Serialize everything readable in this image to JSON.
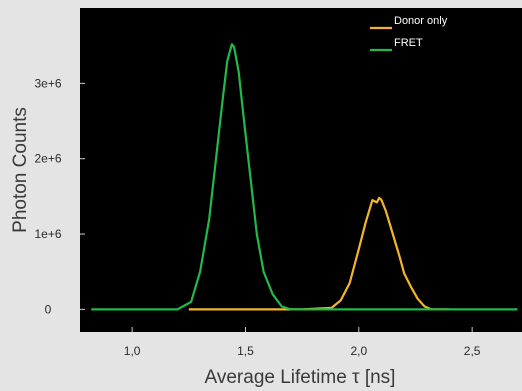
{
  "chart_data": {
    "type": "line",
    "title": "",
    "xlabel": "Average Lifetime τ [ns]",
    "ylabel": "Photon Counts",
    "xlim": [
      0.77,
      2.72
    ],
    "ylim": [
      -300000,
      4000000
    ],
    "x_ticks": [
      {
        "value": 1.0,
        "label": "1,0"
      },
      {
        "value": 1.5,
        "label": "1,5"
      },
      {
        "value": 2.0,
        "label": "2,0"
      },
      {
        "value": 2.5,
        "label": "2,5"
      }
    ],
    "y_ticks": [
      {
        "value": 0,
        "label": "0"
      },
      {
        "value": 1000000,
        "label": "1e+6"
      },
      {
        "value": 2000000,
        "label": "2e+6"
      },
      {
        "value": 3000000,
        "label": "3e+6"
      }
    ],
    "legend": "top-right",
    "grid": false,
    "background_color": "#000000",
    "series": [
      {
        "name": "Donor only",
        "color": "#f5b52a",
        "x": [
          1.25,
          1.5,
          1.75,
          1.88,
          1.92,
          1.96,
          2.0,
          2.03,
          2.05,
          2.06,
          2.08,
          2.09,
          2.1,
          2.12,
          2.15,
          2.18,
          2.2,
          2.23,
          2.26,
          2.29,
          2.32,
          2.4
        ],
        "y": [
          0,
          0,
          0,
          20000,
          120000,
          350000,
          800000,
          1150000,
          1350000,
          1450000,
          1420000,
          1480000,
          1450000,
          1300000,
          1000000,
          700000,
          480000,
          300000,
          140000,
          40000,
          0,
          0
        ]
      },
      {
        "name": "FRET",
        "color": "#22b84a",
        "x": [
          0.82,
          1.1,
          1.2,
          1.26,
          1.3,
          1.34,
          1.37,
          1.4,
          1.42,
          1.44,
          1.45,
          1.47,
          1.49,
          1.52,
          1.55,
          1.58,
          1.62,
          1.66,
          1.7,
          2.0,
          2.7
        ],
        "y": [
          0,
          0,
          0,
          100000,
          500000,
          1200000,
          2000000,
          2800000,
          3300000,
          3520000,
          3480000,
          3150000,
          2600000,
          1800000,
          1000000,
          500000,
          200000,
          40000,
          0,
          0,
          0
        ]
      }
    ]
  }
}
